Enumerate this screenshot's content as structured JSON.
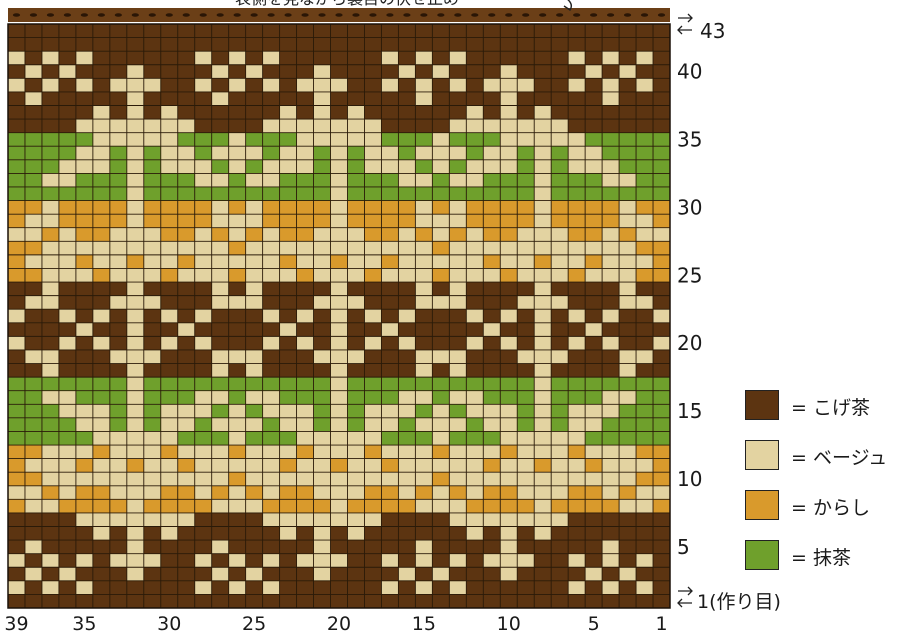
{
  "title_text": "表側を見ながら裏目の伏せ止め",
  "top_row_label": "43",
  "cast_on_label": "1(作り目)",
  "row_labels": [
    "40",
    "35",
    "30",
    "25",
    "20",
    "15",
    "10",
    "5"
  ],
  "column_labels": [
    "39",
    "35",
    "30",
    "25",
    "20",
    "15",
    "10",
    "5",
    "1"
  ],
  "colors": {
    "kogecha": "#5c3411",
    "beige": "#e3d3a1",
    "karashi": "#d99a2c",
    "matcha": "#6fa02c",
    "bind_off": "#6b3f17",
    "grid_line": "#2a1a08"
  },
  "legend": [
    {
      "key": "kogecha",
      "label": "= こげ茶"
    },
    {
      "key": "beige",
      "label": "= ベージュ"
    },
    {
      "key": "karashi",
      "label": "= からし"
    },
    {
      "key": "matcha",
      "label": "= 抹茶"
    }
  ],
  "pattern": {
    "stitches": 39,
    "rows": 43,
    "note": "rows listed from row 43 (top) down to row 1 (cast on); characters left->right = stitch 39 -> stitch 1; K=こげ茶 B=ベージュ Y=からし G=抹茶",
    "grid": [
      "KKKKKKKKKKKKKKKKKKKKKKKKKKKKKKKKKKKKKKK",
      "KKKKKKKKKKKKKKKKKKKKKKKKKKKKKKKKKKKKKKK",
      "BKBKBKKKKKKBKBKBKKKKKKBKBKBKKKKKKBKBKBK",
      "KBKBKKKBKKKKBKBKKKBKKKKBKBKKKBKKKKBKBKK",
      "BKBKBKBBBKKBKBKBKBBBKKBKBKBKBBBKKBKBKBK",
      "KBKKKKKBKKKKBKKKKKBKKKKKBKKKKBKKKKKBKKK",
      "KKKKKBKBKBKKKKKKBKBKBKKKKKKBKBKBKKKKKKK",
      "KKKKBBBBBBBKKKKBBBBBBBKKKKBBBBBBBKKKKKK",
      "GGGGGBBBBBGGGBGGGBBBBBGGGBGGGBBBBBGGGGG",
      "GGGGBBGBGBBGBBBGBBGBGBBGBBBGBBGBGBBGGGG",
      "GGGBBBGBGBBBGBGBBBGBGBBBGBGBBBGBGBBBGGG",
      "GGBBGGGBGGGBBGBBGGGBGGGBBGBBGGGBGGGBBGG",
      "GGGGGGGBGGGGGGGGGGGBGGGGGGGGGGGBGGGGGGG",
      "YYBYYYYBYYYYBYBYYYYBYYYYBYBYYYYBYYYYBYY",
      "YBBYYYYBYYYYBBBYYYYBYYYYBBBYYYYBYYYYBBY",
      "BBYBYYBBBYYBYBYBYYBBBYYBYBYBYYBBBYYBYBB",
      "YYBBBBBBBBBBBYBBBBBBBBBBBYBBBBBBBBBBBYY",
      "YBBBYBBYBBYBBBBBYBBYBBYBBBBBYBBYBBYBBBY",
      "YYBBBYBBBYBBBYBBBYBBBYBBBYBBBYBBBYBBBYY",
      "KKBKKKKBKKKKBKBKKKKBKKKKBKBKKKKBKKKKBKK",
      "KBBKKKBBBKKKBBBKKKBBBKKKBBBKKKBBBKKKBBK",
      "BKKBKBKBKBKBKKKBKBKBKBKBKKKBKBKBKBKBKKB",
      "KKKKBKKBKKBKKKKKBKKBKKBKKKKKBKKBKKBKKKK",
      "BKKBKBKBKBKBKKKBKBKBKBKBKKKBKBKBKBKBKKB",
      "KBBKKKBBBKKKBBBKKKBBBKKKBBBKKKBBBKKKBBK",
      "KKBKKKKBKKKKBKBKKKKBKKKKBKBKKKKBKKKKBKK",
      "GGGGGGGBGGGGGGGGGGGBGGGGGGGGGGGBGGGGGGG",
      "GGBBGGGBGGGBBGBBGGGBGGGBBGBBGGGBGGGBBGG",
      "GGGBBBGBGBBBGBGBBBGBGBBBGBGBBBGBGBBBGGG",
      "GGGGBBGBGBBGBBBGBBGBGBBGBBBGBBGBGBBGGGG",
      "GGGGGBBBBBGGGBGGGBBBBBGGGBGGGBBBBBGGGGG",
      "YYBBBYBBBYBBBYBBBYBBBYBBBYBBBYBBBYBBBYY",
      "YBBBYBBYBBYBBBBBYBBYBBYBBBBBYBBYBBYBBBY",
      "YYBBBBBBBBBBBYBBBBBBBBBBBYBBBBBBBBBBBYY",
      "BBYBYYBBBYYBYBYBYYBBBYYBYBYBYYBBBYYBYBB",
      "YBBYYYYBYYYYBBBYYYYBYYYYBBBYYYYBYYYYBBY",
      "KKKKBBBBBBBKKKKBBBBBBBKKKKBBBBBBBKKKKKK",
      "KKKKKBKBKBKKKKKKBKBKBKKKKKKBKBKBKKKKKKK",
      "KBKKKKKBKKKKBKKKKKBKKKKKBKKKKBKKKKKBKKK",
      "BKBKBKBBBKKBKBKBKBBBKKBKBKBKBBBKKBKBKBK",
      "KBKBKKKBKKKKBKBKKKBKKKKBKBKKKBKKKKBKBKK",
      "BKBKBKKKKKKBKBKBKKKKKKBKBKBKKKKKKBKBKBK",
      "KKKKKKKKKKKKKKKKKKKKKKKKKKKKKKKKKKKKKKK"
    ]
  }
}
